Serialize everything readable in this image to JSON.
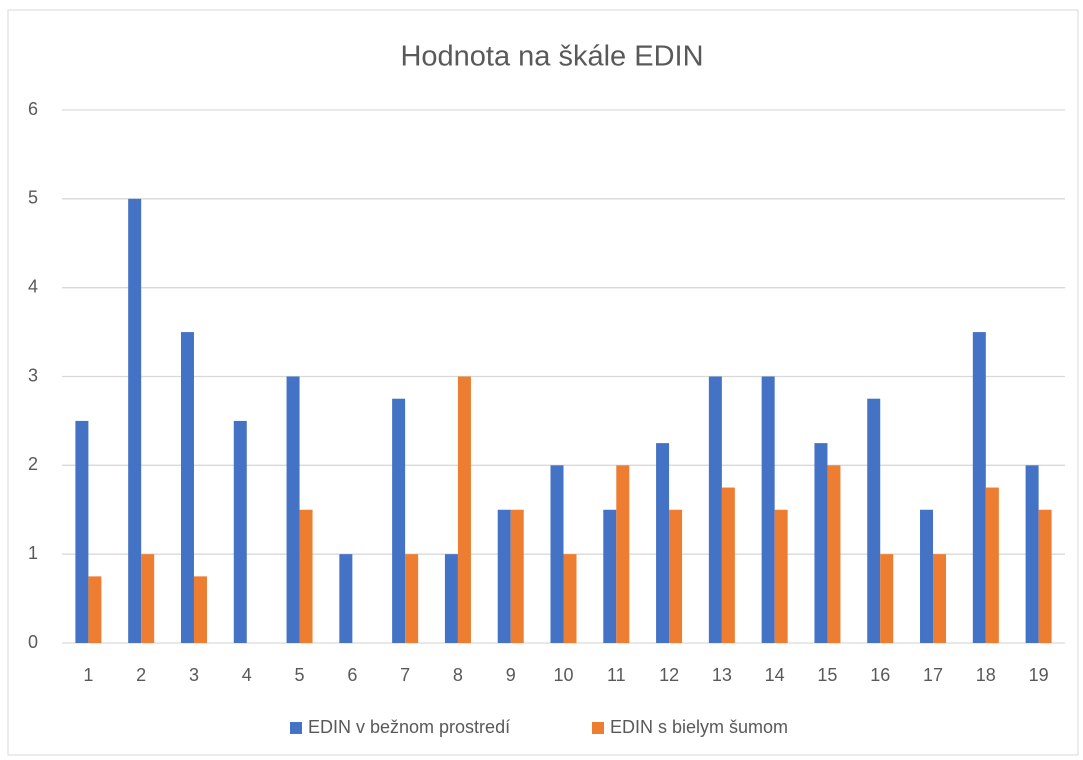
{
  "chart_data": {
    "type": "bar",
    "title": "Hodnota na škále EDIN",
    "categories": [
      "1",
      "2",
      "3",
      "4",
      "5",
      "6",
      "7",
      "8",
      "9",
      "10",
      "11",
      "12",
      "13",
      "14",
      "15",
      "16",
      "17",
      "18",
      "19"
    ],
    "series": [
      {
        "name": "EDIN v bežnom prostredí",
        "color": "#4472c4",
        "values": [
          2.5,
          5,
          3.5,
          2.5,
          3,
          1,
          2.75,
          1,
          1.5,
          2,
          1.5,
          2.25,
          3,
          3,
          2.25,
          2.75,
          1.5,
          3.5,
          2
        ]
      },
      {
        "name": "EDIN s bielym šumom",
        "color": "#ed7d31",
        "values": [
          0.75,
          1,
          0.75,
          0,
          1.5,
          0,
          1,
          3,
          1.5,
          1,
          2,
          1.5,
          1.75,
          1.5,
          2,
          1,
          1,
          1.75,
          1.5
        ]
      }
    ],
    "ylim": [
      0,
      6
    ],
    "yticks": [
      0,
      1,
      2,
      3,
      4,
      5,
      6
    ],
    "grid": true,
    "legend": "bottom"
  }
}
